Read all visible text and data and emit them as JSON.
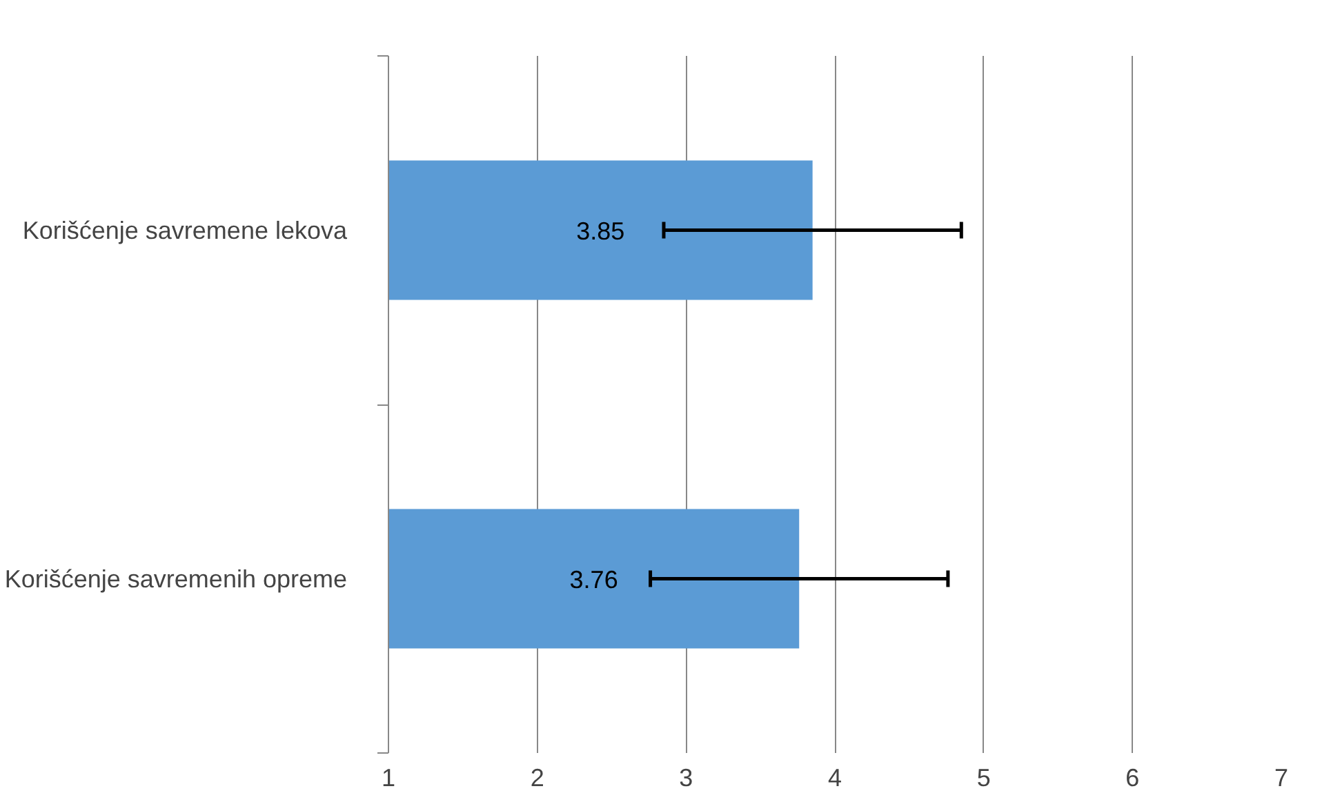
{
  "chart_data": {
    "type": "bar",
    "orientation": "horizontal",
    "categories": [
      "Korišćenje savremene lekova",
      "Korišćenje savremenih opreme"
    ],
    "values": [
      3.85,
      3.76
    ],
    "errors": [
      1.0,
      1.0
    ],
    "color": "#5b9bd5",
    "data_labels": true,
    "xlim": [
      1,
      7
    ],
    "xticks": [
      1,
      2,
      3,
      4,
      5,
      6,
      7
    ],
    "grid": "x"
  }
}
